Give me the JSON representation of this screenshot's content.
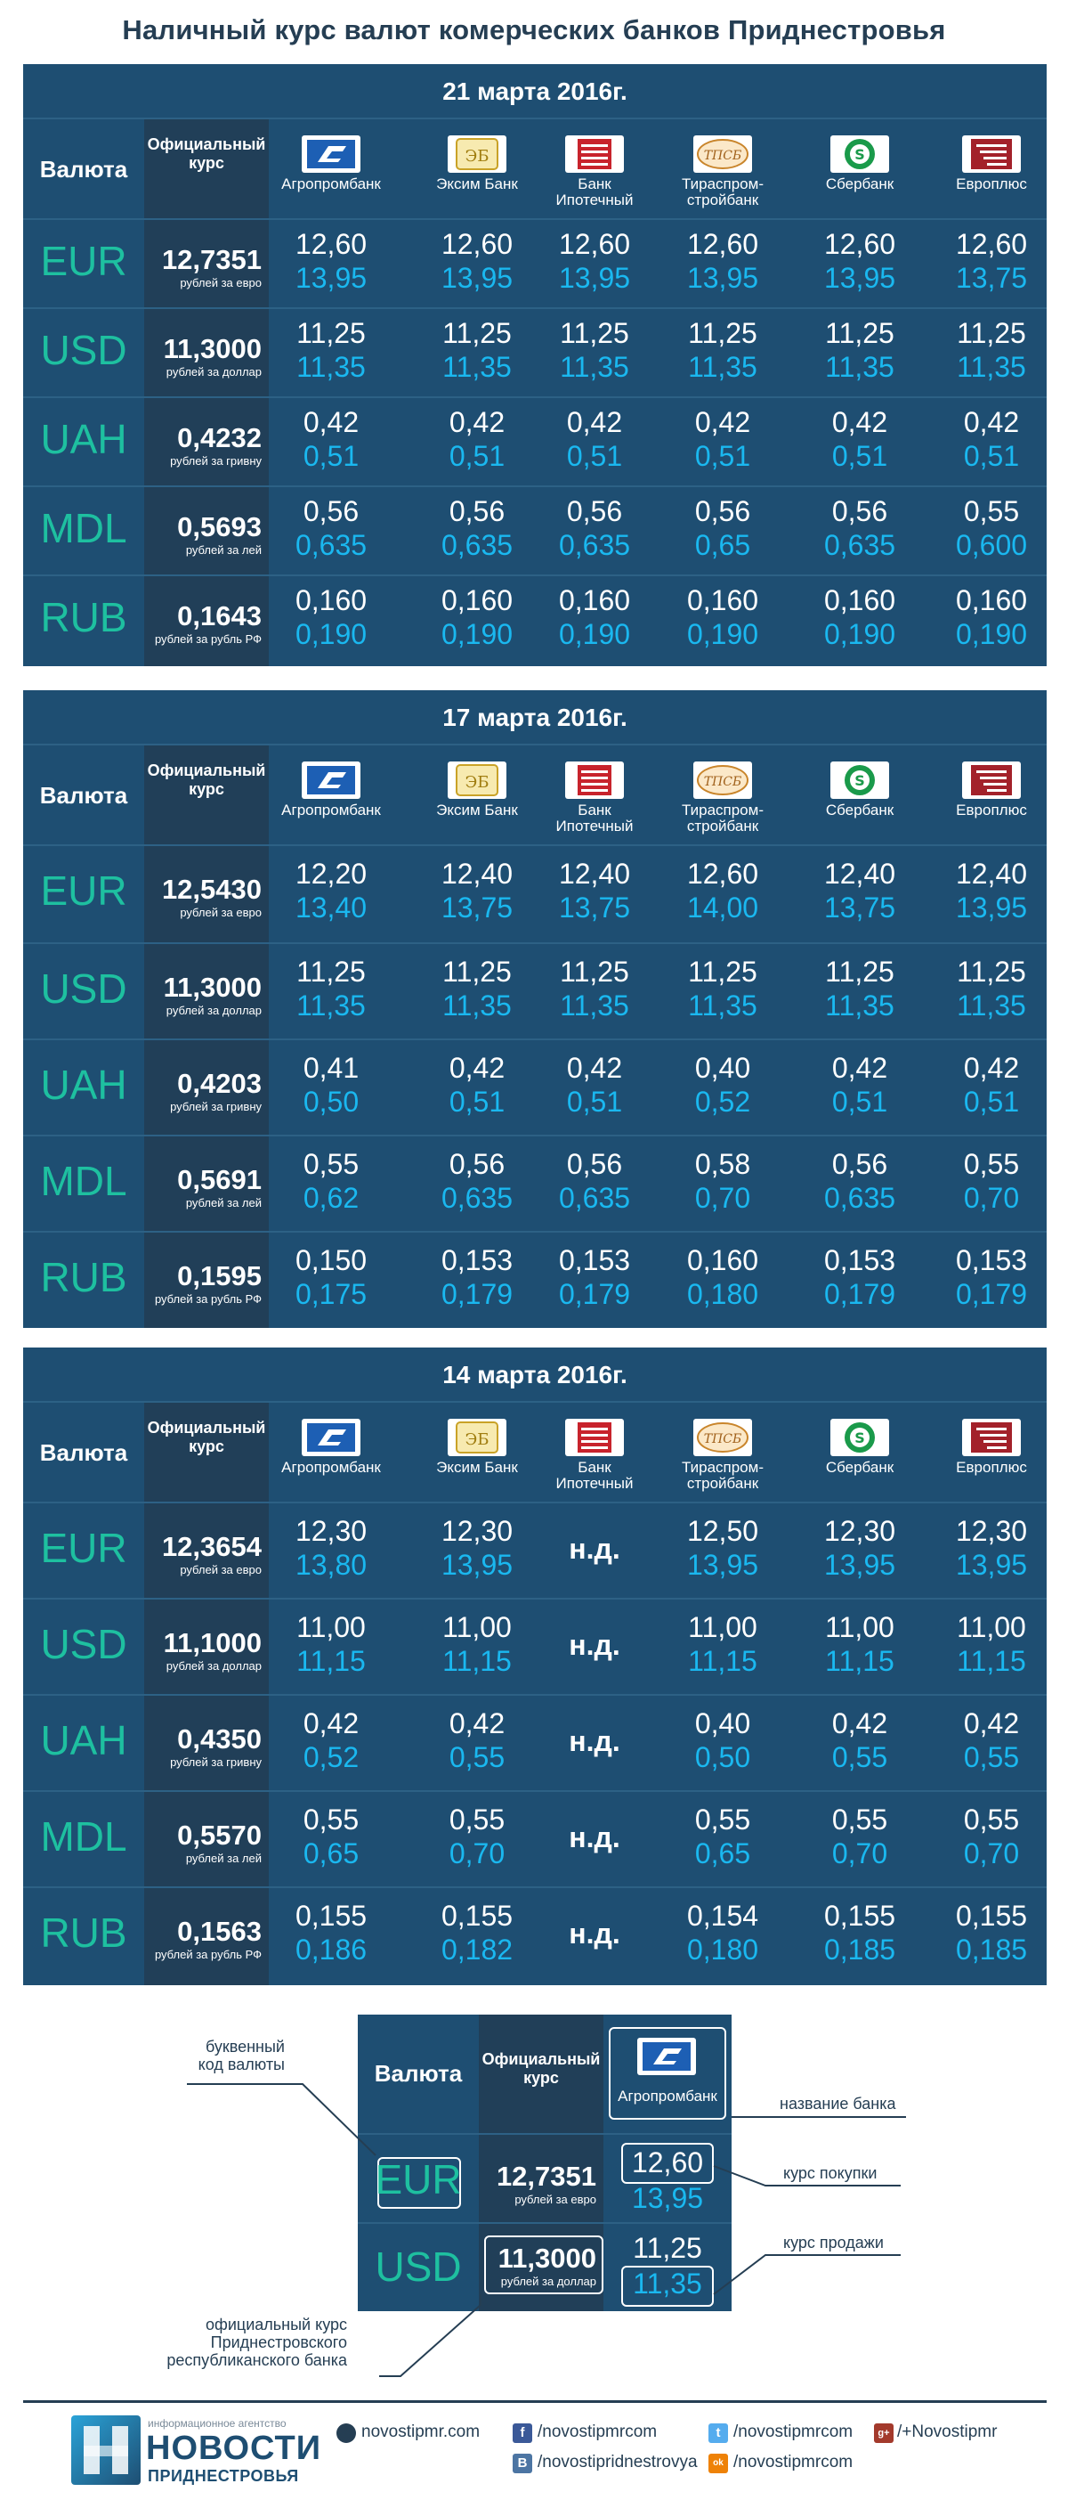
{
  "title": "Наличный курс валют комерческих банков Приднестровья",
  "header": {
    "currency": "Валюта",
    "official_line1": "Официальный",
    "official_line2": "курс"
  },
  "banks": [
    {
      "name1": "Агропромбанк",
      "name2": "",
      "logo": "agroprombank-logo",
      "color": "#1d5fb4"
    },
    {
      "name1": "Эксим Банк",
      "name2": "",
      "logo": "eximbank-logo",
      "color": "#c9a227"
    },
    {
      "name1": "Банк",
      "name2": "Ипотечный",
      "logo": "ipotechny-logo",
      "color": "#c8232c"
    },
    {
      "name1": "Тираспром-",
      "name2": "стройбанк",
      "logo": "tiraspromstroybank-logo",
      "color": "#c9852b"
    },
    {
      "name1": "Сбербанк",
      "name2": "",
      "logo": "sberbank-logo",
      "color": "#1a9a4a"
    },
    {
      "name1": "Европлюс",
      "name2": "",
      "logo": "europlus-logo",
      "color": "#a3212a"
    }
  ],
  "tables": [
    {
      "date": "21 марта 2016г.",
      "rows": [
        {
          "code": "EUR",
          "official": "12,7351",
          "sub": "рублей за евро",
          "buy": [
            "12,60",
            "12,60",
            "12,60",
            "12,60",
            "12,60",
            "12,60"
          ],
          "sell": [
            "13,95",
            "13,95",
            "13,95",
            "13,95",
            "13,95",
            "13,75"
          ]
        },
        {
          "code": "USD",
          "official": "11,3000",
          "sub": "рублей за доллар",
          "buy": [
            "11,25",
            "11,25",
            "11,25",
            "11,25",
            "11,25",
            "11,25"
          ],
          "sell": [
            "11,35",
            "11,35",
            "11,35",
            "11,35",
            "11,35",
            "11,35"
          ]
        },
        {
          "code": "UAH",
          "official": "0,4232",
          "sub": "рублей за гривну",
          "buy": [
            "0,42",
            "0,42",
            "0,42",
            "0,42",
            "0,42",
            "0,42"
          ],
          "sell": [
            "0,51",
            "0,51",
            "0,51",
            "0,51",
            "0,51",
            "0,51"
          ]
        },
        {
          "code": "MDL",
          "official": "0,5693",
          "sub": "рублей за лей",
          "buy": [
            "0,56",
            "0,56",
            "0,56",
            "0,56",
            "0,56",
            "0,55"
          ],
          "sell": [
            "0,635",
            "0,635",
            "0,635",
            "0,65",
            "0,635",
            "0,600"
          ]
        },
        {
          "code": "RUB",
          "official": "0,1643",
          "sub": "рублей за рубль РФ",
          "buy": [
            "0,160",
            "0,160",
            "0,160",
            "0,160",
            "0,160",
            "0,160"
          ],
          "sell": [
            "0,190",
            "0,190",
            "0,190",
            "0,190",
            "0,190",
            "0,190"
          ]
        }
      ]
    },
    {
      "date": "17 марта 2016г.",
      "rows": [
        {
          "code": "EUR",
          "official": "12,5430",
          "sub": "рублей за евро",
          "buy": [
            "12,20",
            "12,40",
            "12,40",
            "12,60",
            "12,40",
            "12,40"
          ],
          "sell": [
            "13,40",
            "13,75",
            "13,75",
            "14,00",
            "13,75",
            "13,95"
          ]
        },
        {
          "code": "USD",
          "official": "11,3000",
          "sub": "рублей за доллар",
          "buy": [
            "11,25",
            "11,25",
            "11,25",
            "11,25",
            "11,25",
            "11,25"
          ],
          "sell": [
            "11,35",
            "11,35",
            "11,35",
            "11,35",
            "11,35",
            "11,35"
          ]
        },
        {
          "code": "UAH",
          "official": "0,4203",
          "sub": "рублей за гривну",
          "buy": [
            "0,41",
            "0,42",
            "0,42",
            "0,40",
            "0,42",
            "0,42"
          ],
          "sell": [
            "0,50",
            "0,51",
            "0,51",
            "0,52",
            "0,51",
            "0,51"
          ]
        },
        {
          "code": "MDL",
          "official": "0,5691",
          "sub": "рублей за лей",
          "buy": [
            "0,55",
            "0,56",
            "0,56",
            "0,58",
            "0,56",
            "0,55"
          ],
          "sell": [
            "0,62",
            "0,635",
            "0,635",
            "0,70",
            "0,635",
            "0,70"
          ]
        },
        {
          "code": "RUB",
          "official": "0,1595",
          "sub": "рублей за рубль РФ",
          "buy": [
            "0,150",
            "0,153",
            "0,153",
            "0,160",
            "0,153",
            "0,153"
          ],
          "sell": [
            "0,175",
            "0,179",
            "0,179",
            "0,180",
            "0,179",
            "0,179"
          ]
        }
      ]
    },
    {
      "date": "14 марта 2016г.",
      "rows": [
        {
          "code": "EUR",
          "official": "12,3654",
          "sub": "рублей за евро",
          "buy": [
            "12,30",
            "12,30",
            "н.д.",
            "12,50",
            "12,30",
            "12,30"
          ],
          "sell": [
            "13,80",
            "13,95",
            "",
            "13,95",
            "13,95",
            "13,95"
          ]
        },
        {
          "code": "USD",
          "official": "11,1000",
          "sub": "рублей за доллар",
          "buy": [
            "11,00",
            "11,00",
            "н.д.",
            "11,00",
            "11,00",
            "11,00"
          ],
          "sell": [
            "11,15",
            "11,15",
            "",
            "11,15",
            "11,15",
            "11,15"
          ]
        },
        {
          "code": "UAH",
          "official": "0,4350",
          "sub": "рублей за гривну",
          "buy": [
            "0,42",
            "0,42",
            "н.д.",
            "0,40",
            "0,42",
            "0,42"
          ],
          "sell": [
            "0,52",
            "0,55",
            "",
            "0,50",
            "0,55",
            "0,55"
          ]
        },
        {
          "code": "MDL",
          "official": "0,5570",
          "sub": "рублей за лей",
          "buy": [
            "0,55",
            "0,55",
            "н.д.",
            "0,55",
            "0,55",
            "0,55"
          ],
          "sell": [
            "0,65",
            "0,70",
            "",
            "0,65",
            "0,70",
            "0,70"
          ]
        },
        {
          "code": "RUB",
          "official": "0,1563",
          "sub": "рублей за рубль РФ",
          "buy": [
            "0,155",
            "0,155",
            "н.д.",
            "0,154",
            "0,155",
            "0,155"
          ],
          "sell": [
            "0,186",
            "0,182",
            "",
            "0,180",
            "0,185",
            "0,185"
          ]
        }
      ]
    }
  ],
  "legend": {
    "currency": "Валюта",
    "official_line1": "Официальный",
    "official_line2": "курс",
    "bank": "Агропромбанк",
    "rows": [
      {
        "code": "EUR",
        "official": "12,7351",
        "sub": "рублей за евро",
        "buy": "12,60",
        "sell": "13,95"
      },
      {
        "code": "USD",
        "official": "11,3000",
        "sub": "рублей за доллар",
        "buy": "11,25",
        "sell": "11,35"
      }
    ],
    "label_bank": "название банка",
    "label_code1": "буквенный",
    "label_code2": "код валюты",
    "label_buy": "курс покупки",
    "label_sell": "курс продажи",
    "label_official1": "официальный курс",
    "label_official2": "Приднестровского",
    "label_official3": "республиканского банка"
  },
  "footer": {
    "agency_small": "информационное агентство",
    "brand": "НОВОСТИ",
    "brand_sub": "ПРИДНЕСТРОВЬЯ",
    "site": "novostipmr.com",
    "facebook": "/novostipmrcom",
    "vk": "/novostipridnestrovya",
    "twitter": "/novostipmrcom",
    "odnoklassniki": "/novostipmrcom",
    "gplus": "/+Novostipmr",
    "fb_glyph": "f",
    "vk_glyph": "B",
    "tw_glyph": "t",
    "ok_glyph": "ok",
    "gp_glyph": "g+"
  }
}
